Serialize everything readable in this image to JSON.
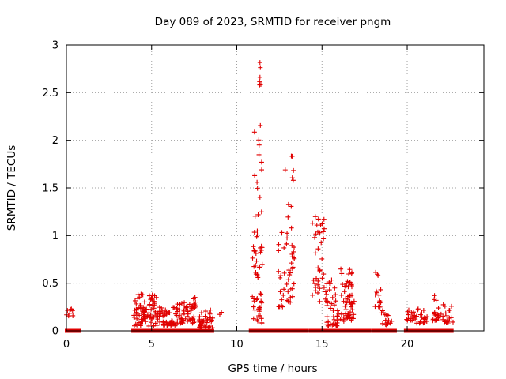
{
  "chart_data": {
    "type": "scatter",
    "title": "Day 089 of 2023, SRMTID for receiver pngm",
    "xlabel": "GPS time / hours",
    "ylabel": "SRMTID / TECUs",
    "xlim": [
      0,
      24.5
    ],
    "ylim": [
      0,
      3
    ],
    "xticks": [
      0,
      5,
      10,
      15,
      20
    ],
    "yticks": [
      0,
      0.5,
      1,
      1.5,
      2,
      2.5,
      3
    ],
    "xtick_labels": [
      "0",
      "5",
      "10",
      "15",
      "20"
    ],
    "ytick_labels": [
      "0",
      "0.5",
      "1",
      "1.5",
      "2",
      "2.5",
      "3"
    ],
    "grid": true,
    "marker": "+",
    "color": "#e00000",
    "clusters": [
      {
        "x0": 0.0,
        "x1": 0.4,
        "ymin": 0.15,
        "ymax": 0.23,
        "n": 8
      },
      {
        "x0": 3.9,
        "x1": 4.6,
        "ymin": 0.05,
        "ymax": 0.4,
        "n": 45
      },
      {
        "x0": 4.6,
        "x1": 5.3,
        "ymin": 0.05,
        "ymax": 0.38,
        "n": 40
      },
      {
        "x0": 5.3,
        "x1": 6.5,
        "ymin": 0.05,
        "ymax": 0.25,
        "n": 55
      },
      {
        "x0": 6.5,
        "x1": 7.6,
        "ymin": 0.08,
        "ymax": 0.3,
        "n": 50
      },
      {
        "x0": 7.4,
        "x1": 7.6,
        "ymin": 0.25,
        "ymax": 0.42,
        "n": 6
      },
      {
        "x0": 7.8,
        "x1": 8.6,
        "ymin": 0.03,
        "ymax": 0.22,
        "n": 40
      },
      {
        "x0": 8.9,
        "x1": 9.1,
        "ymin": 0.17,
        "ymax": 0.2,
        "n": 2
      },
      {
        "x0": 10.9,
        "x1": 11.5,
        "ymin": 0.08,
        "ymax": 0.4,
        "n": 25
      },
      {
        "x0": 10.9,
        "x1": 11.5,
        "ymin": 0.55,
        "ymax": 1.1,
        "n": 25
      },
      {
        "x0": 11.0,
        "x1": 11.5,
        "ymin": 1.2,
        "ymax": 2.2,
        "n": 14
      },
      {
        "x0": 11.3,
        "x1": 11.45,
        "ymin": 2.55,
        "ymax": 2.85,
        "n": 6
      },
      {
        "x0": 12.4,
        "x1": 13.0,
        "ymin": 0.25,
        "ymax": 1.05,
        "n": 22
      },
      {
        "x0": 12.8,
        "x1": 12.9,
        "ymin": 1.65,
        "ymax": 1.7,
        "n": 1
      },
      {
        "x0": 13.0,
        "x1": 13.4,
        "ymin": 0.3,
        "ymax": 1.35,
        "n": 28
      },
      {
        "x0": 13.2,
        "x1": 13.35,
        "ymin": 1.55,
        "ymax": 1.85,
        "n": 5
      },
      {
        "x0": 14.4,
        "x1": 15.2,
        "ymin": 0.3,
        "ymax": 1.2,
        "n": 35
      },
      {
        "x0": 15.2,
        "x1": 16.0,
        "ymin": 0.05,
        "ymax": 0.55,
        "n": 45
      },
      {
        "x0": 16.0,
        "x1": 16.9,
        "ymin": 0.1,
        "ymax": 0.65,
        "n": 60
      },
      {
        "x0": 18.1,
        "x1": 18.5,
        "ymin": 0.25,
        "ymax": 0.62,
        "n": 14
      },
      {
        "x0": 18.4,
        "x1": 19.1,
        "ymin": 0.05,
        "ymax": 0.22,
        "n": 18
      },
      {
        "x0": 19.9,
        "x1": 20.4,
        "ymin": 0.1,
        "ymax": 0.22,
        "n": 14
      },
      {
        "x0": 20.4,
        "x1": 21.2,
        "ymin": 0.08,
        "ymax": 0.24,
        "n": 20
      },
      {
        "x0": 21.4,
        "x1": 22.0,
        "ymin": 0.1,
        "ymax": 0.38,
        "n": 20
      },
      {
        "x0": 22.0,
        "x1": 22.7,
        "ymin": 0.08,
        "ymax": 0.28,
        "n": 20
      }
    ],
    "zero_line_segments": [
      [
        0.0,
        0.9
      ],
      [
        3.9,
        8.6
      ],
      [
        10.8,
        12.3
      ],
      [
        12.4,
        14.2
      ],
      [
        14.3,
        17.9
      ],
      [
        18.0,
        19.3
      ],
      [
        19.9,
        22.7
      ]
    ]
  }
}
